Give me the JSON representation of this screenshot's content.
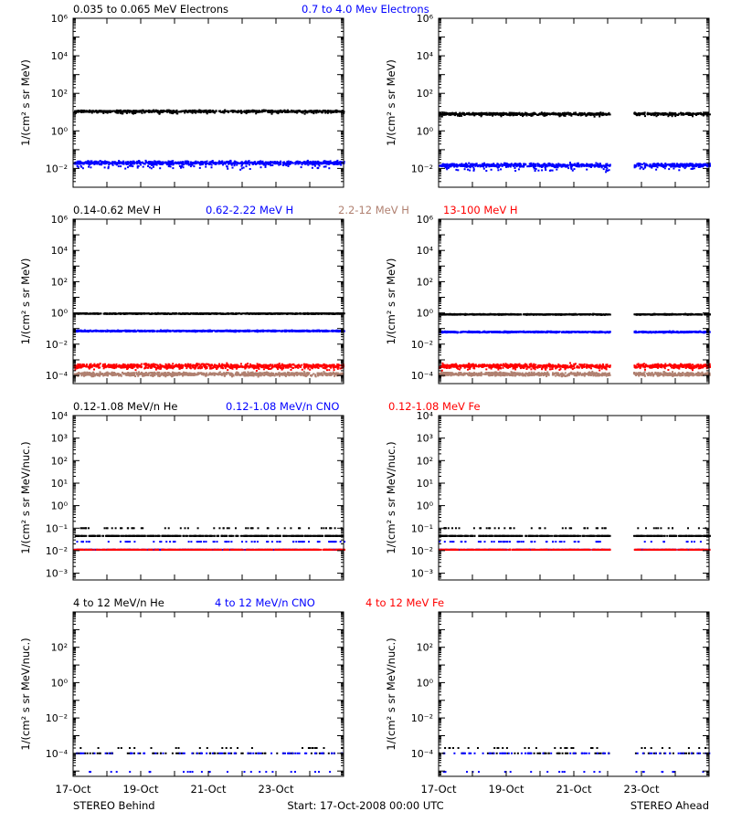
{
  "colors": {
    "black": "#000000",
    "blue": "#0000ff",
    "tan": "#b08070",
    "red": "#ff0000"
  },
  "footer": {
    "left": "STEREO Behind",
    "center": "Start: 17-Oct-2008 00:00 UTC",
    "right": "STEREO Ahead"
  },
  "x_axis": {
    "start": "17-Oct-2008",
    "days": 8,
    "tick_labels": [
      {
        "day": 0,
        "label": "17-Oct"
      },
      {
        "day": 2,
        "label": "19-Oct"
      },
      {
        "day": 4,
        "label": "21-Oct"
      },
      {
        "day": 6,
        "label": "23-Oct"
      }
    ]
  },
  "chart_data": [
    {
      "type": "scatter",
      "row": 0,
      "col": 0,
      "ylabel": "1/(cm² s sr MeV)",
      "yscale": "log",
      "ylim": [
        0.001,
        1000000
      ],
      "yticks": [
        {
          "v": 0.01,
          "label": "10⁻²"
        },
        {
          "v": 1,
          "label": "10⁰"
        },
        {
          "v": 100,
          "label": "10²"
        },
        {
          "v": 10000,
          "label": "10⁴"
        },
        {
          "v": 1000000,
          "label": "10⁶"
        }
      ],
      "legend": [
        {
          "text": "0.035 to 0.065 MeV Electrons",
          "color": "#000000"
        },
        {
          "text": "0.7 to 4.0 Mev Electrons",
          "color": "#0000ff"
        }
      ],
      "series": [
        {
          "name": "0.035 to 0.065 MeV Electrons",
          "color": "#000000",
          "level": 11,
          "scatter": 0.08,
          "spread_low": 0.1
        },
        {
          "name": "0.7 to 4.0 Mev Electrons",
          "color": "#0000ff",
          "level": 0.02,
          "scatter": 0.14,
          "spread_low": 0.3
        }
      ],
      "gap": null
    },
    {
      "type": "scatter",
      "row": 0,
      "col": 1,
      "ylabel": "1/(cm² s sr MeV)",
      "yscale": "log",
      "ylim": [
        0.001,
        1000000
      ],
      "yticks": [
        {
          "v": 0.01,
          "label": "10⁻²"
        },
        {
          "v": 1,
          "label": "10⁰"
        },
        {
          "v": 100,
          "label": "10²"
        },
        {
          "v": 10000,
          "label": "10⁴"
        },
        {
          "v": 1000000,
          "label": "10⁶"
        }
      ],
      "legend": [],
      "series": [
        {
          "name": "0.035 to 0.065 MeV Electrons",
          "color": "#000000",
          "level": 8,
          "scatter": 0.09,
          "spread_low": 0.1
        },
        {
          "name": "0.7 to 4.0 Mev Electrons",
          "color": "#0000ff",
          "level": 0.015,
          "scatter": 0.14,
          "spread_low": 0.3
        }
      ],
      "gap": [
        5.05,
        5.75
      ]
    },
    {
      "type": "scatter",
      "row": 1,
      "col": 0,
      "ylabel": "1/(cm² s sr MeV)",
      "yscale": "log",
      "ylim": [
        3e-05,
        1000000
      ],
      "yticks": [
        {
          "v": 0.0001,
          "label": "10⁻⁴"
        },
        {
          "v": 0.01,
          "label": "10⁻²"
        },
        {
          "v": 1,
          "label": "10⁰"
        },
        {
          "v": 100,
          "label": "10²"
        },
        {
          "v": 10000,
          "label": "10⁴"
        },
        {
          "v": 1000000,
          "label": "10⁶"
        }
      ],
      "legend": [
        {
          "text": "0.14-0.62 MeV H",
          "color": "#000000"
        },
        {
          "text": "0.62-2.22 MeV H",
          "color": "#0000ff"
        },
        {
          "text": "2.2-12 MeV H",
          "color": "#b08070"
        },
        {
          "text": "13-100 MeV H",
          "color": "#ff0000"
        }
      ],
      "series": [
        {
          "name": "0.14-0.62 MeV H",
          "color": "#000000",
          "level": 0.9,
          "scatter": 0.04,
          "spread_low": 0
        },
        {
          "name": "0.62-2.22 MeV H",
          "color": "#0000ff",
          "level": 0.07,
          "scatter": 0.06,
          "spread_low": 0
        },
        {
          "name": "2.2-12 MeV H",
          "color": "#b08070",
          "level": 0.00012,
          "scatter": 0.18,
          "spread_low": 0
        },
        {
          "name": "13-100 MeV H",
          "color": "#ff0000",
          "level": 0.0004,
          "scatter": 0.2,
          "spread_low": 0.2
        }
      ],
      "gap": null
    },
    {
      "type": "scatter",
      "row": 1,
      "col": 1,
      "ylabel": "1/(cm² s sr MeV)",
      "yscale": "log",
      "ylim": [
        3e-05,
        1000000
      ],
      "yticks": [
        {
          "v": 0.0001,
          "label": "10⁻⁴"
        },
        {
          "v": 0.01,
          "label": "10⁻²"
        },
        {
          "v": 1,
          "label": "10⁰"
        },
        {
          "v": 100,
          "label": "10²"
        },
        {
          "v": 10000,
          "label": "10⁴"
        },
        {
          "v": 1000000,
          "label": "10⁶"
        }
      ],
      "legend": [],
      "series": [
        {
          "name": "0.14-0.62 MeV H",
          "color": "#000000",
          "level": 0.8,
          "scatter": 0.04,
          "spread_low": 0
        },
        {
          "name": "0.62-2.22 MeV H",
          "color": "#0000ff",
          "level": 0.06,
          "scatter": 0.06,
          "spread_low": 0
        },
        {
          "name": "2.2-12 MeV H",
          "color": "#b08070",
          "level": 0.00012,
          "scatter": 0.18,
          "spread_low": 0
        },
        {
          "name": "13-100 MeV H",
          "color": "#ff0000",
          "level": 0.0004,
          "scatter": 0.2,
          "spread_low": 0.2
        }
      ],
      "gap": [
        5.05,
        5.75
      ]
    },
    {
      "type": "scatter",
      "row": 2,
      "col": 0,
      "ylabel": "1/(cm² s sr MeV/nuc.)",
      "yscale": "log",
      "ylim": [
        0.0005,
        10000
      ],
      "yticks": [
        {
          "v": 0.001,
          "label": "10⁻³"
        },
        {
          "v": 0.01,
          "label": "10⁻²"
        },
        {
          "v": 0.1,
          "label": "10⁻¹"
        },
        {
          "v": 1,
          "label": "10⁰"
        },
        {
          "v": 10,
          "label": "10¹"
        },
        {
          "v": 100,
          "label": "10²"
        },
        {
          "v": 1000,
          "label": "10³"
        },
        {
          "v": 10000,
          "label": "10⁴"
        }
      ],
      "legend": [
        {
          "text": "0.12-1.08 MeV/n He",
          "color": "#000000"
        },
        {
          "text": "0.12-1.08 MeV/n CNO",
          "color": "#0000ff"
        },
        {
          "text": "0.12-1.08 MeV Fe",
          "color": "#ff0000"
        }
      ],
      "series": [
        {
          "name": "0.12-1.08 MeV/n He",
          "color": "#000000",
          "level": 0.045,
          "quantized": [
            0.045,
            0.1
          ],
          "scatter": 0,
          "spread_low": 0
        },
        {
          "name": "0.12-1.08 MeV/n CNO",
          "color": "#0000ff",
          "level": 0.011,
          "quantized": [
            0.011,
            0.025
          ],
          "scatter": 0,
          "spread_low": 0
        },
        {
          "name": "0.12-1.08 MeV Fe",
          "color": "#ff0000",
          "level": 0.011,
          "quantized": [
            0.011
          ],
          "scatter": 0,
          "spread_low": 0
        }
      ],
      "gap": null
    },
    {
      "type": "scatter",
      "row": 2,
      "col": 1,
      "ylabel": "1/(cm² s sr MeV/nuc.)",
      "yscale": "log",
      "ylim": [
        0.0005,
        10000
      ],
      "yticks": [
        {
          "v": 0.001,
          "label": "10⁻³"
        },
        {
          "v": 0.01,
          "label": "10⁻²"
        },
        {
          "v": 0.1,
          "label": "10⁻¹"
        },
        {
          "v": 1,
          "label": "10⁰"
        },
        {
          "v": 10,
          "label": "10¹"
        },
        {
          "v": 100,
          "label": "10²"
        },
        {
          "v": 1000,
          "label": "10³"
        },
        {
          "v": 10000,
          "label": "10⁴"
        }
      ],
      "legend": [],
      "series": [
        {
          "name": "0.12-1.08 MeV/n He",
          "color": "#000000",
          "level": 0.045,
          "quantized": [
            0.045,
            0.1
          ],
          "scatter": 0,
          "spread_low": 0
        },
        {
          "name": "0.12-1.08 MeV/n CNO",
          "color": "#0000ff",
          "level": 0.011,
          "quantized": [
            0.011,
            0.025
          ],
          "scatter": 0,
          "spread_low": 0
        },
        {
          "name": "0.12-1.08 MeV Fe",
          "color": "#ff0000",
          "level": 0.011,
          "quantized": [
            0.011
          ],
          "scatter": 0,
          "spread_low": 0
        }
      ],
      "gap": [
        5.05,
        5.75
      ]
    },
    {
      "type": "scatter",
      "row": 3,
      "col": 0,
      "ylabel": "1/(cm² s sr MeV/nuc.)",
      "yscale": "log",
      "ylim": [
        5e-06,
        10000
      ],
      "yticks": [
        {
          "v": 0.0001,
          "label": "10⁻⁴"
        },
        {
          "v": 0.01,
          "label": "10⁻²"
        },
        {
          "v": 1,
          "label": "10⁰"
        },
        {
          "v": 100,
          "label": "10²"
        }
      ],
      "legend": [
        {
          "text": "4 to 12 MeV/n He",
          "color": "#000000"
        },
        {
          "text": "4 to 12 MeV/n CNO",
          "color": "#0000ff"
        },
        {
          "text": "4 to 12 MeV Fe",
          "color": "#ff0000"
        }
      ],
      "series": [
        {
          "name": "4 to 12 MeV/n He",
          "color": "#000000",
          "level": 0.0001,
          "quantized": [
            0.0001,
            0.0002
          ],
          "sparse": true,
          "scatter": 0,
          "spread_low": 0
        },
        {
          "name": "4 to 12 MeV/n CNO",
          "color": "#0000ff",
          "level": 0.0001,
          "quantized": [
            0.0001,
            9e-06
          ],
          "sparse": true,
          "scatter": 0,
          "spread_low": 0
        }
      ],
      "gap": null
    },
    {
      "type": "scatter",
      "row": 3,
      "col": 1,
      "ylabel": "1/(cm² s sr MeV/nuc.)",
      "yscale": "log",
      "ylim": [
        5e-06,
        10000
      ],
      "yticks": [
        {
          "v": 0.0001,
          "label": "10⁻⁴"
        },
        {
          "v": 0.01,
          "label": "10⁻²"
        },
        {
          "v": 1,
          "label": "10⁰"
        },
        {
          "v": 100,
          "label": "10²"
        }
      ],
      "legend": [],
      "series": [
        {
          "name": "4 to 12 MeV/n He",
          "color": "#000000",
          "level": 0.0001,
          "quantized": [
            0.0001,
            0.0002
          ],
          "sparse": true,
          "scatter": 0,
          "spread_low": 0
        },
        {
          "name": "4 to 12 MeV/n CNO",
          "color": "#0000ff",
          "level": 0.0001,
          "quantized": [
            0.0001,
            9e-06
          ],
          "sparse": true,
          "scatter": 0,
          "spread_low": 0
        }
      ],
      "gap": [
        5.05,
        5.75
      ]
    }
  ]
}
